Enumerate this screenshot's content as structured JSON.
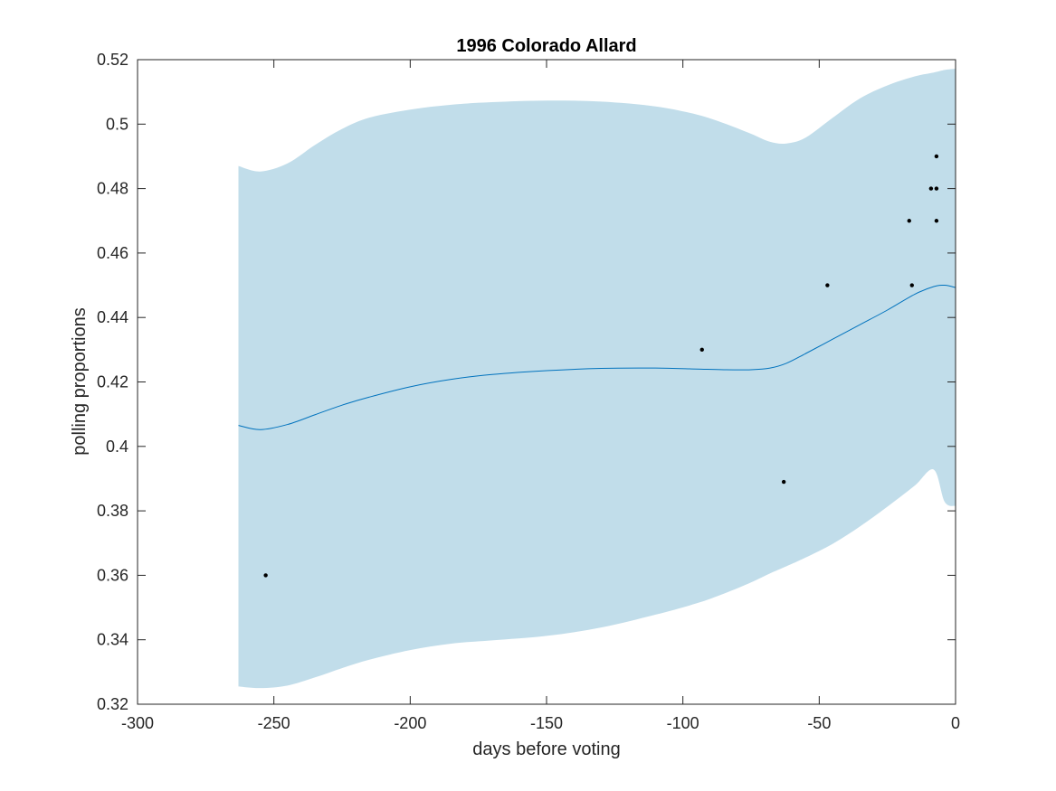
{
  "chart_data": {
    "type": "line",
    "title": "1996 Colorado Allard",
    "xlabel": "days before voting",
    "ylabel": "polling proportions",
    "xlim": [
      -300,
      0
    ],
    "ylim": [
      0.32,
      0.52
    ],
    "x_ticks": [
      -300,
      -250,
      -200,
      -150,
      -100,
      -50,
      0
    ],
    "x_tick_labels": [
      "-300",
      "-250",
      "-200",
      "-150",
      "-100",
      "-50",
      "0"
    ],
    "y_ticks": [
      0.32,
      0.34,
      0.36,
      0.38,
      0.4,
      0.42,
      0.44,
      0.46,
      0.48,
      0.5,
      0.52
    ],
    "y_tick_labels": [
      "0.32",
      "0.34",
      "0.36",
      "0.38",
      "0.4",
      "0.42",
      "0.44",
      "0.46",
      "0.48",
      "0.5",
      "0.52"
    ],
    "grid": false,
    "colors": {
      "band": "#c1ddea",
      "line": "#0072bd",
      "points": "#000000",
      "axes": "#262626"
    },
    "mean_curve": {
      "x": [
        -263,
        -255,
        -245,
        -235,
        -225,
        -215,
        -200,
        -185,
        -170,
        -150,
        -130,
        -110,
        -95,
        -85,
        -75,
        -68,
        -62,
        -55,
        -45,
        -35,
        -25,
        -15,
        -8,
        -4,
        0
      ],
      "y": [
        0.4065,
        0.4052,
        0.4068,
        0.4098,
        0.4128,
        0.4153,
        0.4185,
        0.4208,
        0.4223,
        0.4235,
        0.4242,
        0.4243,
        0.424,
        0.4238,
        0.4238,
        0.4243,
        0.4258,
        0.4288,
        0.4333,
        0.4378,
        0.4423,
        0.4472,
        0.4496,
        0.45,
        0.4493
      ]
    },
    "confidence_band": {
      "x": [
        -263,
        -255,
        -245,
        -235,
        -225,
        -215,
        -200,
        -185,
        -170,
        -150,
        -130,
        -110,
        -95,
        -85,
        -75,
        -68,
        -62,
        -55,
        -45,
        -35,
        -25,
        -15,
        -8,
        -4,
        0
      ],
      "upper": [
        0.487,
        0.4853,
        0.4878,
        0.4935,
        0.4985,
        0.502,
        0.5045,
        0.506,
        0.5068,
        0.5073,
        0.507,
        0.5055,
        0.503,
        0.5003,
        0.497,
        0.4945,
        0.494,
        0.4958,
        0.502,
        0.508,
        0.512,
        0.5148,
        0.516,
        0.5168,
        0.5172
      ],
      "lower": [
        0.3255,
        0.325,
        0.3258,
        0.3283,
        0.3312,
        0.3338,
        0.3368,
        0.3388,
        0.3398,
        0.3412,
        0.3438,
        0.3478,
        0.3513,
        0.3543,
        0.3578,
        0.3606,
        0.3628,
        0.3655,
        0.3698,
        0.3752,
        0.3813,
        0.3878,
        0.3928,
        0.3828,
        0.3815
      ]
    },
    "points": [
      {
        "x": -253,
        "y": 0.36
      },
      {
        "x": -93,
        "y": 0.43
      },
      {
        "x": -63,
        "y": 0.389
      },
      {
        "x": -47,
        "y": 0.45
      },
      {
        "x": -17,
        "y": 0.47
      },
      {
        "x": -16,
        "y": 0.45
      },
      {
        "x": -9,
        "y": 0.48
      },
      {
        "x": -7,
        "y": 0.49
      },
      {
        "x": -7,
        "y": 0.48
      },
      {
        "x": -7,
        "y": 0.47
      }
    ]
  }
}
